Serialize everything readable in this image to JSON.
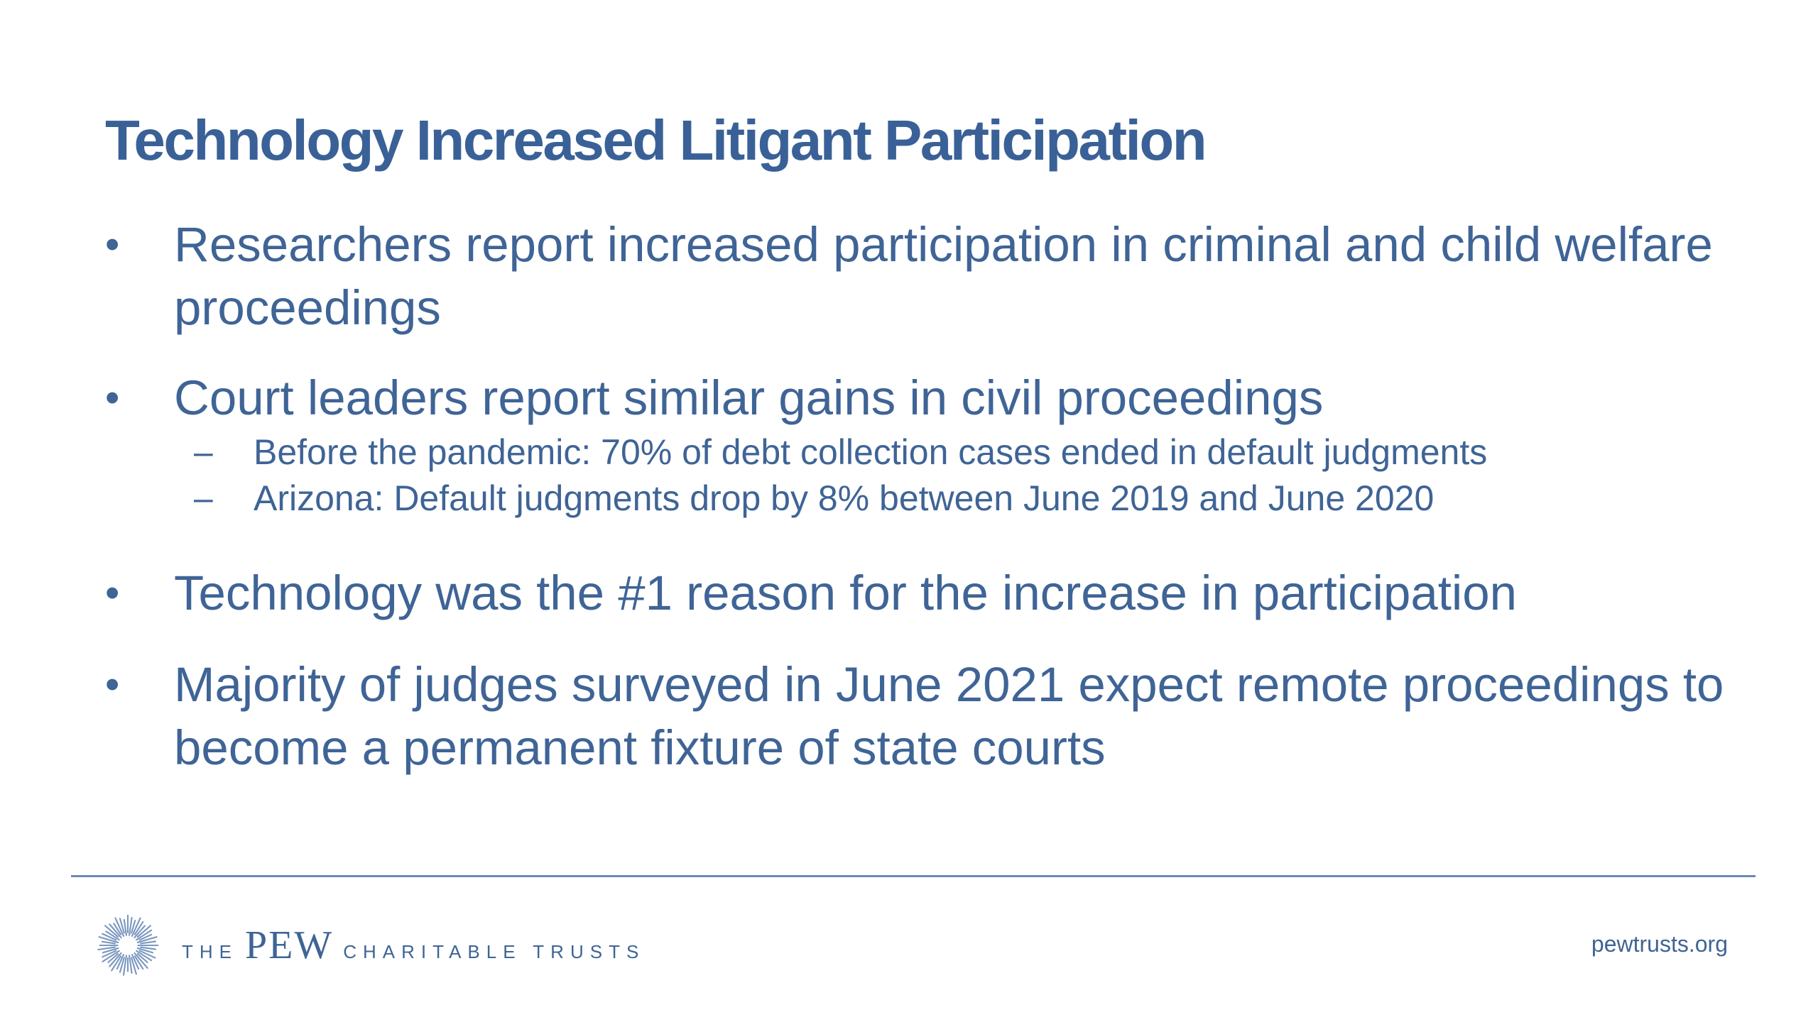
{
  "slide": {
    "title": "Technology Increased Litigant Participation",
    "bullets": [
      {
        "bullet": "•",
        "text": "Researchers report increased participation in criminal and child welfare proceedings"
      },
      {
        "bullet": "•",
        "text": "Court leaders report similar gains in civil proceedings",
        "sub_items": [
          {
            "dash": "–",
            "text": "Before the pandemic: 70% of debt collection cases ended in default judgments"
          },
          {
            "dash": "–",
            "text": "Arizona: Default judgments drop by 8% between June 2019 and June 2020"
          }
        ]
      },
      {
        "bullet": "•",
        "text": "Technology was the #1 reason for the increase in participation"
      },
      {
        "bullet": "•",
        "text": "Majority of judges surveyed in June 2021 expect remote proceedings to become a permanent fixture of state courts"
      }
    ]
  },
  "footer": {
    "logo": {
      "the": "THE",
      "pew": "PEW",
      "charitable_trusts": "CHARITABLE TRUSTS",
      "icon": "sunburst-icon"
    },
    "website": "pewtrusts.org"
  },
  "colors": {
    "text_blue": "#3f6496",
    "title_blue": "#3a6197",
    "rule": "#6b89b3",
    "background": "#ffffff"
  }
}
